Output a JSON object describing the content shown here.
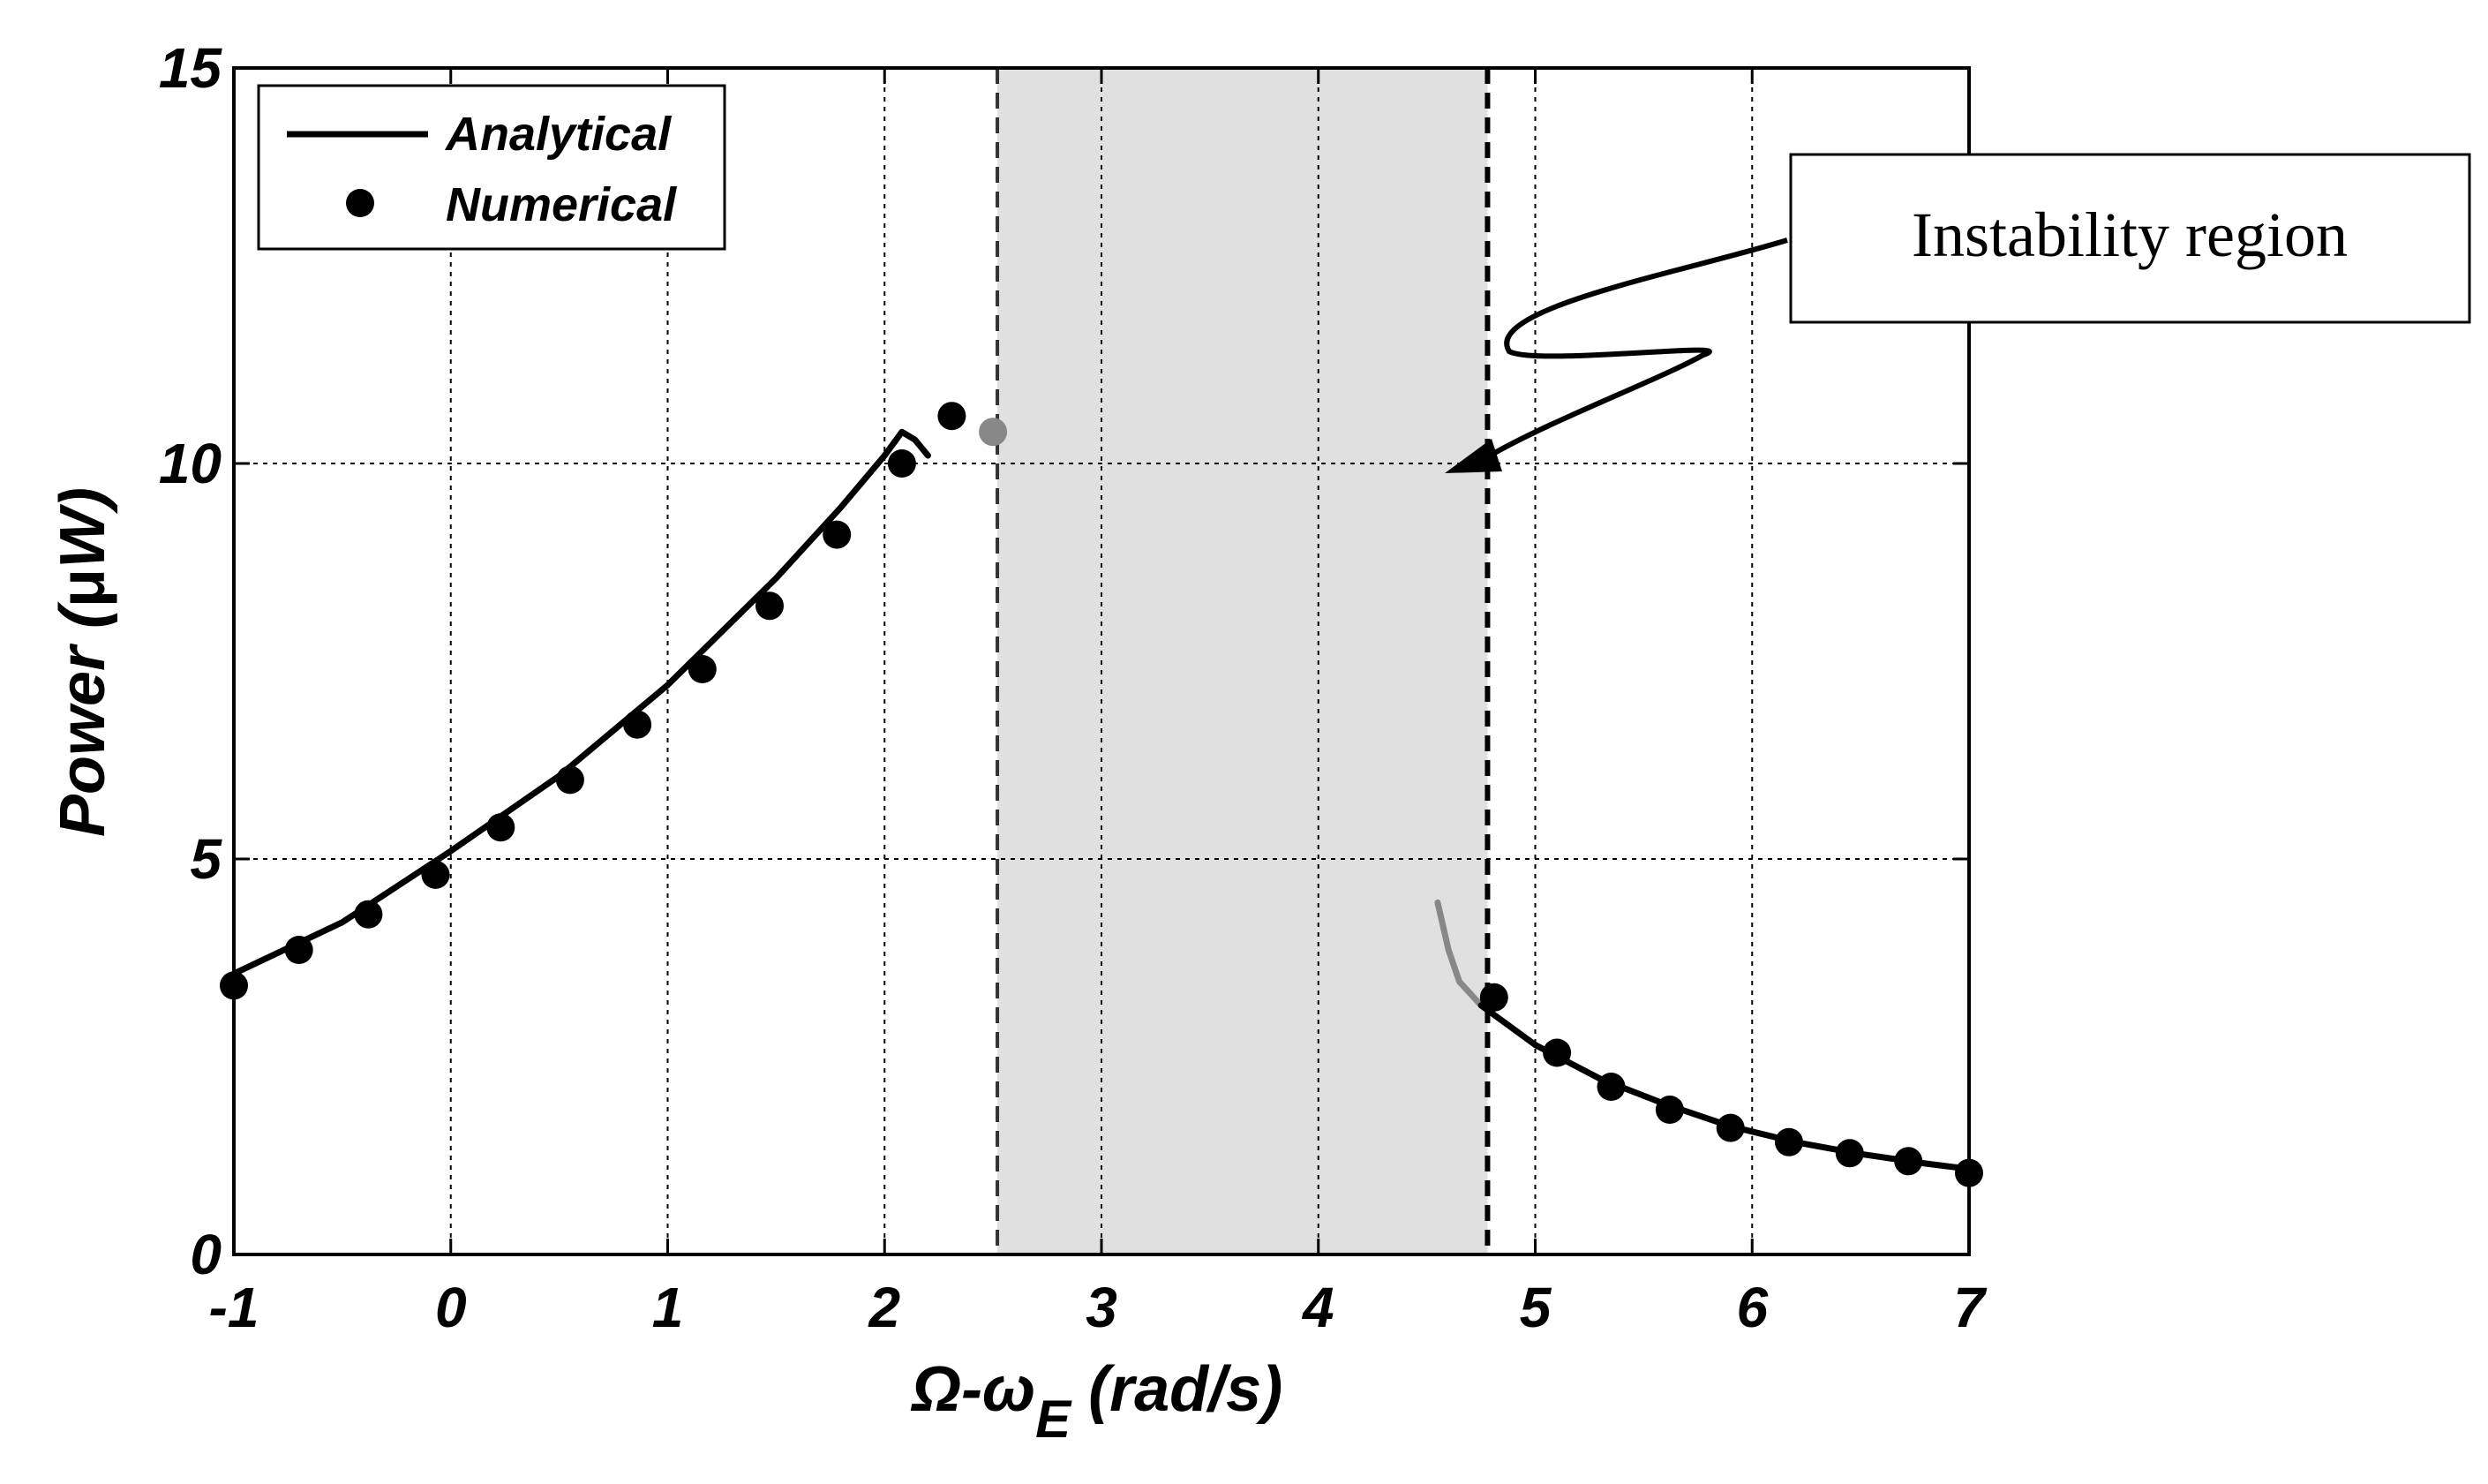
{
  "chart_data": {
    "type": "line",
    "title": "",
    "xlabel": {
      "main": "Ω-ω",
      "sub": "E",
      "tail": " (rad/s)"
    },
    "ylabel": {
      "prefix": "Power (",
      "greek": "μ",
      "suffix": "W)"
    },
    "xlim": [
      -1,
      7
    ],
    "ylim": [
      0,
      15
    ],
    "x_ticks": [
      "-1",
      "0",
      "1",
      "2",
      "3",
      "4",
      "5",
      "6",
      "7"
    ],
    "y_ticks": [
      "0",
      "5",
      "10",
      "15"
    ],
    "grid": true,
    "legend_position": "top-left",
    "instability_region": {
      "x_start": 2.52,
      "x_end": 4.78,
      "color": "#e0e0e0"
    },
    "annotation": {
      "text": "Instability region",
      "points_to": {
        "x": 4.55,
        "y": 10.0
      }
    },
    "series": [
      {
        "name": "Analytical",
        "style": "line",
        "color": "#000000",
        "segments": [
          {
            "color": "#000000",
            "points": [
              [
                -1.0,
                3.55
              ],
              [
                -0.5,
                4.2
              ],
              [
                0.0,
                5.1
              ],
              [
                0.5,
                6.05
              ],
              [
                1.0,
                7.2
              ],
              [
                1.5,
                8.55
              ],
              [
                1.8,
                9.45
              ],
              [
                2.0,
                10.1
              ],
              [
                2.08,
                10.4
              ],
              [
                2.14,
                10.3
              ],
              [
                2.2,
                10.1
              ]
            ]
          },
          {
            "color": "#888888",
            "points": [
              [
                4.55,
                4.45
              ],
              [
                4.6,
                3.85
              ],
              [
                4.65,
                3.45
              ],
              [
                4.75,
                3.15
              ]
            ]
          },
          {
            "color": "#000000",
            "points": [
              [
                4.75,
                3.15
              ],
              [
                5.0,
                2.65
              ],
              [
                5.3,
                2.22
              ],
              [
                5.6,
                1.9
              ],
              [
                5.9,
                1.62
              ],
              [
                6.2,
                1.42
              ],
              [
                6.5,
                1.27
              ],
              [
                6.8,
                1.15
              ],
              [
                7.0,
                1.08
              ]
            ]
          }
        ]
      },
      {
        "name": "Numerical",
        "style": "markers",
        "color": "#000000",
        "points": [
          [
            -1.0,
            3.4
          ],
          [
            -0.7,
            3.85
          ],
          [
            -0.38,
            4.3
          ],
          [
            -0.07,
            4.8
          ],
          [
            0.23,
            5.4
          ],
          [
            0.55,
            6.0
          ],
          [
            0.86,
            6.7
          ],
          [
            1.16,
            7.4
          ],
          [
            1.47,
            8.2
          ],
          [
            1.78,
            9.1
          ],
          [
            2.08,
            10.0
          ],
          [
            2.31,
            10.6
          ],
          [
            2.5,
            10.4
          ],
          [
            4.81,
            3.25
          ],
          [
            5.1,
            2.55
          ],
          [
            5.35,
            2.12
          ],
          [
            5.62,
            1.83
          ],
          [
            5.9,
            1.6
          ],
          [
            6.17,
            1.42
          ],
          [
            6.45,
            1.28
          ],
          [
            6.72,
            1.18
          ],
          [
            7.0,
            1.03
          ]
        ],
        "highlighted_points": [
          [
            2.5,
            10.4
          ]
        ],
        "highlight_color": "#888888"
      }
    ]
  }
}
